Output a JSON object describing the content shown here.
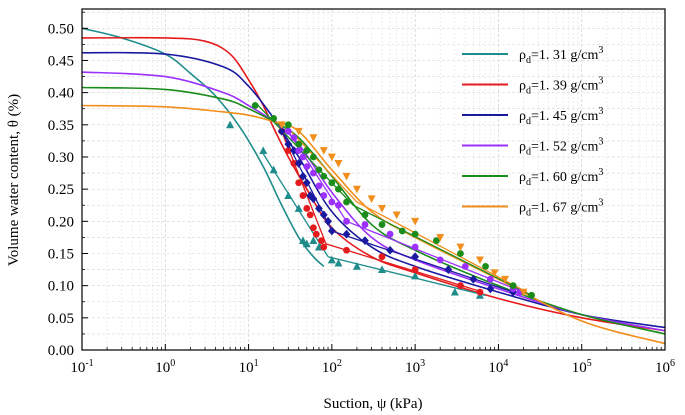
{
  "chart_data": {
    "type": "scatter",
    "title": "",
    "xlabel": "Suction, ψ (kPa)",
    "ylabel": "Volume water content, θ (%)",
    "xscale": "log",
    "xlim": [
      0.1,
      1000000
    ],
    "ylim": [
      0,
      0.53
    ],
    "grid": true,
    "legend_position": "top-right",
    "x_tick_labels": [
      {
        "base": "10",
        "exp": "-1"
      },
      {
        "base": "10",
        "exp": "0"
      },
      {
        "base": "10",
        "exp": "1"
      },
      {
        "base": "10",
        "exp": "2"
      },
      {
        "base": "10",
        "exp": "3"
      },
      {
        "base": "10",
        "exp": "4"
      },
      {
        "base": "10",
        "exp": "5"
      },
      {
        "base": "10",
        "exp": "6"
      }
    ],
    "y_tick_labels": [
      "0.00",
      "0.05",
      "0.10",
      "0.15",
      "0.20",
      "0.25",
      "0.30",
      "0.35",
      "0.40",
      "0.45",
      "0.50"
    ],
    "series": [
      {
        "name": "ρd=1. 31 g/cm3",
        "legend": {
          "pre": "ρ",
          "sub": "d",
          "mid": "=1. 31 g/cm",
          "sup": "3"
        },
        "color": "#1f8c8c",
        "marker": "triangle",
        "fit_curve": [
          [
            0.1,
            0.5
          ],
          [
            0.3,
            0.485
          ],
          [
            1,
            0.46
          ],
          [
            2,
            0.43
          ],
          [
            4,
            0.395
          ],
          [
            8,
            0.345
          ],
          [
            15,
            0.285
          ],
          [
            25,
            0.225
          ],
          [
            40,
            0.175
          ],
          [
            60,
            0.145
          ],
          [
            80,
            0.13
          ]
        ],
        "points": [
          [
            6,
            0.35
          ],
          [
            15,
            0.31
          ],
          [
            20,
            0.28
          ],
          [
            30,
            0.24
          ],
          [
            40,
            0.22
          ],
          [
            45,
            0.17
          ],
          [
            50,
            0.165
          ],
          [
            60,
            0.17
          ],
          [
            70,
            0.16
          ],
          [
            100,
            0.14
          ],
          [
            120,
            0.135
          ],
          [
            200,
            0.13
          ],
          [
            400,
            0.125
          ],
          [
            1000,
            0.115
          ],
          [
            3000,
            0.09
          ],
          [
            6000,
            0.085
          ]
        ],
        "fit_lines": [
          [
            [
              15,
              0.305
            ],
            [
              90,
              0.145
            ]
          ],
          [
            [
              90,
              0.145
            ],
            [
              7000,
              0.085
            ]
          ]
        ]
      },
      {
        "name": "ρd=1. 39 g/cm3",
        "legend": {
          "pre": "ρ",
          "sub": "d",
          "mid": "=1. 39 g/cm",
          "sup": "3"
        },
        "color": "#e41a1c",
        "marker": "circle",
        "fit_curve": [
          [
            0.1,
            0.485
          ],
          [
            1,
            0.485
          ],
          [
            3,
            0.48
          ],
          [
            6,
            0.46
          ],
          [
            10,
            0.42
          ],
          [
            15,
            0.38
          ],
          [
            20,
            0.345
          ],
          [
            30,
            0.3
          ],
          [
            50,
            0.25
          ],
          [
            100,
            0.19
          ],
          [
            300,
            0.145
          ],
          [
            1000,
            0.12
          ],
          [
            10000,
            0.08
          ],
          [
            100000,
            0.05
          ],
          [
            1000000,
            0.03
          ]
        ],
        "points": [
          [
            25,
            0.34
          ],
          [
            30,
            0.31
          ],
          [
            35,
            0.29
          ],
          [
            40,
            0.26
          ],
          [
            45,
            0.24
          ],
          [
            50,
            0.22
          ],
          [
            55,
            0.21
          ],
          [
            60,
            0.19
          ],
          [
            65,
            0.18
          ],
          [
            75,
            0.17
          ],
          [
            80,
            0.16
          ],
          [
            150,
            0.155
          ],
          [
            400,
            0.145
          ],
          [
            1000,
            0.125
          ],
          [
            3500,
            0.1
          ],
          [
            6000,
            0.09
          ]
        ],
        "fit_lines": [
          [
            [
              25,
              0.34
            ],
            [
              85,
              0.165
            ]
          ],
          [
            [
              85,
              0.165
            ],
            [
              6500,
              0.09
            ]
          ]
        ]
      },
      {
        "name": "ρd=1. 45 g/cm3",
        "legend": {
          "pre": "ρ",
          "sub": "d",
          "mid": "=1. 45 g/cm",
          "sup": "3"
        },
        "color": "#1a1aa0",
        "marker": "diamond",
        "fit_curve": [
          [
            0.1,
            0.462
          ],
          [
            1,
            0.46
          ],
          [
            5,
            0.44
          ],
          [
            10,
            0.41
          ],
          [
            20,
            0.36
          ],
          [
            40,
            0.3
          ],
          [
            100,
            0.215
          ],
          [
            300,
            0.16
          ],
          [
            1000,
            0.13
          ],
          [
            10000,
            0.09
          ],
          [
            100000,
            0.055
          ],
          [
            1000000,
            0.035
          ]
        ],
        "points": [
          [
            25,
            0.34
          ],
          [
            30,
            0.32
          ],
          [
            35,
            0.31
          ],
          [
            40,
            0.29
          ],
          [
            45,
            0.27
          ],
          [
            50,
            0.26
          ],
          [
            55,
            0.24
          ],
          [
            60,
            0.235
          ],
          [
            70,
            0.22
          ],
          [
            80,
            0.21
          ],
          [
            90,
            0.2
          ],
          [
            100,
            0.185
          ],
          [
            150,
            0.18
          ],
          [
            250,
            0.17
          ],
          [
            500,
            0.155
          ],
          [
            1000,
            0.145
          ],
          [
            2500,
            0.125
          ],
          [
            5000,
            0.11
          ],
          [
            8000,
            0.095
          ],
          [
            15000,
            0.09
          ]
        ],
        "fit_lines": [
          [
            [
              25,
              0.34
            ],
            [
              100,
              0.185
            ]
          ],
          [
            [
              100,
              0.185
            ],
            [
              15000,
              0.09
            ]
          ]
        ]
      },
      {
        "name": "ρd=1. 52 g/cm3",
        "legend": {
          "pre": "ρ",
          "sub": "d",
          "mid": "=1. 52 g/cm",
          "sup": "3"
        },
        "color": "#9b30ff",
        "marker": "circle",
        "fit_curve": [
          [
            0.1,
            0.432
          ],
          [
            1,
            0.425
          ],
          [
            5,
            0.4
          ],
          [
            10,
            0.38
          ],
          [
            20,
            0.355
          ],
          [
            40,
            0.32
          ],
          [
            100,
            0.245
          ],
          [
            300,
            0.175
          ],
          [
            1000,
            0.14
          ],
          [
            10000,
            0.095
          ],
          [
            100000,
            0.055
          ],
          [
            1000000,
            0.03
          ]
        ],
        "points": [
          [
            30,
            0.34
          ],
          [
            35,
            0.33
          ],
          [
            40,
            0.31
          ],
          [
            45,
            0.3
          ],
          [
            50,
            0.285
          ],
          [
            60,
            0.275
          ],
          [
            70,
            0.255
          ],
          [
            80,
            0.24
          ],
          [
            100,
            0.23
          ],
          [
            120,
            0.225
          ],
          [
            150,
            0.2
          ],
          [
            250,
            0.195
          ],
          [
            500,
            0.18
          ],
          [
            1000,
            0.16
          ],
          [
            2000,
            0.14
          ],
          [
            4000,
            0.13
          ],
          [
            8000,
            0.11
          ],
          [
            15000,
            0.095
          ],
          [
            18000,
            0.09
          ]
        ],
        "fit_lines": [
          [
            [
              30,
              0.34
            ],
            [
              150,
              0.2
            ]
          ],
          [
            [
              150,
              0.2
            ],
            [
              20000,
              0.09
            ]
          ]
        ]
      },
      {
        "name": "ρd=1. 60 g/cm3",
        "legend": {
          "pre": "ρ",
          "sub": "d",
          "mid": "=1. 60 g/cm",
          "sup": "3"
        },
        "color": "#1a8c1a",
        "marker": "circle",
        "fit_curve": [
          [
            0.1,
            0.408
          ],
          [
            1,
            0.405
          ],
          [
            5,
            0.39
          ],
          [
            10,
            0.375
          ],
          [
            20,
            0.355
          ],
          [
            40,
            0.33
          ],
          [
            100,
            0.27
          ],
          [
            300,
            0.195
          ],
          [
            1000,
            0.155
          ],
          [
            10000,
            0.1
          ],
          [
            100000,
            0.055
          ],
          [
            1000000,
            0.025
          ]
        ],
        "points": [
          [
            12,
            0.38
          ],
          [
            20,
            0.36
          ],
          [
            30,
            0.35
          ],
          [
            40,
            0.32
          ],
          [
            50,
            0.31
          ],
          [
            60,
            0.3
          ],
          [
            70,
            0.28
          ],
          [
            80,
            0.27
          ],
          [
            100,
            0.26
          ],
          [
            120,
            0.25
          ],
          [
            150,
            0.23
          ],
          [
            250,
            0.21
          ],
          [
            400,
            0.195
          ],
          [
            700,
            0.185
          ],
          [
            1000,
            0.18
          ],
          [
            1800,
            0.17
          ],
          [
            3500,
            0.15
          ],
          [
            7000,
            0.13
          ],
          [
            15000,
            0.1
          ],
          [
            25000,
            0.085
          ]
        ],
        "fit_lines": [
          [
            [
              12,
              0.385
            ],
            [
              180,
              0.225
            ]
          ],
          [
            [
              180,
              0.225
            ],
            [
              25000,
              0.085
            ]
          ]
        ]
      },
      {
        "name": "ρd=1. 67 g/cm3",
        "legend": {
          "pre": "ρ",
          "sub": "d",
          "mid": "=1. 67 g/cm",
          "sup": "3"
        },
        "color": "#f28e1c",
        "marker": "triangle-down",
        "fit_curve": [
          [
            0.1,
            0.38
          ],
          [
            1,
            0.378
          ],
          [
            5,
            0.37
          ],
          [
            10,
            0.365
          ],
          [
            20,
            0.355
          ],
          [
            40,
            0.34
          ],
          [
            100,
            0.28
          ],
          [
            300,
            0.215
          ],
          [
            1000,
            0.175
          ],
          [
            10000,
            0.11
          ],
          [
            100000,
            0.045
          ],
          [
            1000000,
            0.01
          ]
        ],
        "points": [
          [
            25,
            0.35
          ],
          [
            40,
            0.34
          ],
          [
            60,
            0.33
          ],
          [
            80,
            0.31
          ],
          [
            100,
            0.3
          ],
          [
            120,
            0.29
          ],
          [
            150,
            0.27
          ],
          [
            200,
            0.25
          ],
          [
            300,
            0.235
          ],
          [
            400,
            0.22
          ],
          [
            600,
            0.21
          ],
          [
            1000,
            0.2
          ],
          [
            2000,
            0.175
          ],
          [
            3500,
            0.16
          ],
          [
            6000,
            0.14
          ],
          [
            9000,
            0.12
          ],
          [
            12000,
            0.11
          ],
          [
            20000,
            0.09
          ]
        ],
        "fit_lines": [
          [
            [
              25,
              0.355
            ],
            [
              200,
              0.23
            ]
          ],
          [
            [
              200,
              0.23
            ],
            [
              22000,
              0.09
            ]
          ]
        ]
      }
    ]
  }
}
